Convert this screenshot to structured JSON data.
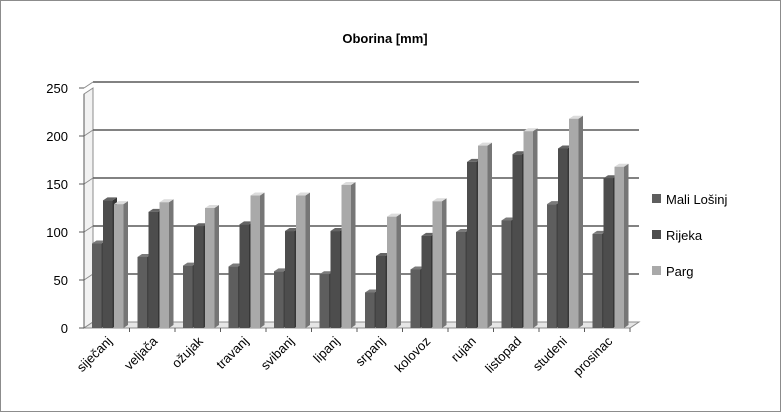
{
  "chart_data": {
    "type": "bar",
    "title": "Oborina [mm]",
    "xlabel": "",
    "ylabel": "",
    "ylim": [
      0,
      250
    ],
    "yticks": [
      0,
      50,
      100,
      150,
      200,
      250
    ],
    "grid": true,
    "legend_position": "right",
    "style": "3d-clustered-column",
    "categories": [
      "siječanj",
      "veljača",
      "ožujak",
      "travanj",
      "svibanj",
      "lipanj",
      "srpanj",
      "kolovoz",
      "rujan",
      "listopad",
      "studeni",
      "prosinac"
    ],
    "series": [
      {
        "name": "Mali Lošinj",
        "color": "#5e5e5e",
        "values": [
          88,
          74,
          65,
          64,
          59,
          56,
          37,
          61,
          100,
          112,
          129,
          98
        ]
      },
      {
        "name": "Rijeka",
        "color": "#4d4d4d",
        "values": [
          133,
          121,
          106,
          108,
          101,
          101,
          75,
          96,
          173,
          181,
          187,
          156
        ]
      },
      {
        "name": "Parg",
        "color": "#a9a9a9",
        "values": [
          129,
          131,
          125,
          138,
          138,
          149,
          116,
          132,
          190,
          205,
          218,
          168
        ]
      }
    ]
  }
}
